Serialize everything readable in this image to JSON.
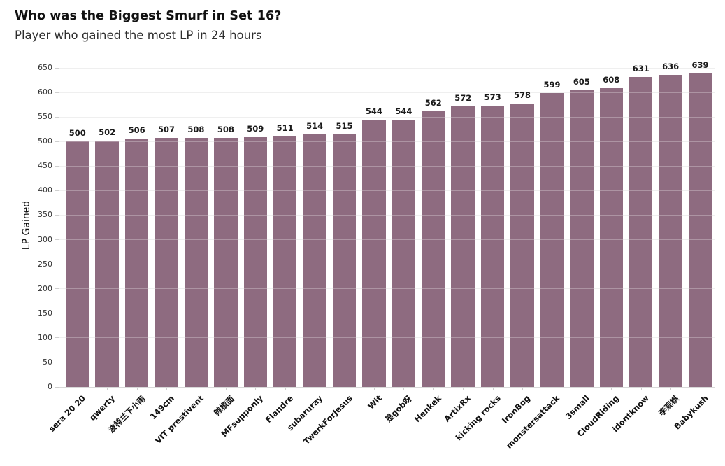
{
  "page": {
    "background": "#ffffff"
  },
  "chart_data": {
    "type": "bar",
    "title": "Who was the Biggest Smurf in Set 16?",
    "subtitle": "Player who gained the most LP in 24 hours",
    "xlabel": "",
    "ylabel": "LP Gained",
    "ylim": [
      0,
      650
    ],
    "ytick_step": 50,
    "grid": true,
    "legend": false,
    "bar_color": "#8e6b80",
    "value_label_color": "#1a1a1a",
    "categories": [
      "sera 20 20",
      "qwerty",
      "波特兰下小雨",
      "149cm",
      "VIT prestivent",
      "辣椒面",
      "MFsupponly",
      "Flandre",
      "subaruray",
      "TwerkForJesus",
      "Wit",
      "是gob呀",
      "Henkek",
      "ArtixRx",
      "kicking rocks",
      "IronBog",
      "monstersattack",
      "3small",
      "CloudRiding",
      "idontknow",
      "李观棋",
      "Babykush"
    ],
    "values": [
      500,
      502,
      506,
      507,
      508,
      508,
      509,
      511,
      514,
      515,
      544,
      544,
      562,
      572,
      573,
      578,
      599,
      605,
      608,
      631,
      636,
      639
    ]
  }
}
